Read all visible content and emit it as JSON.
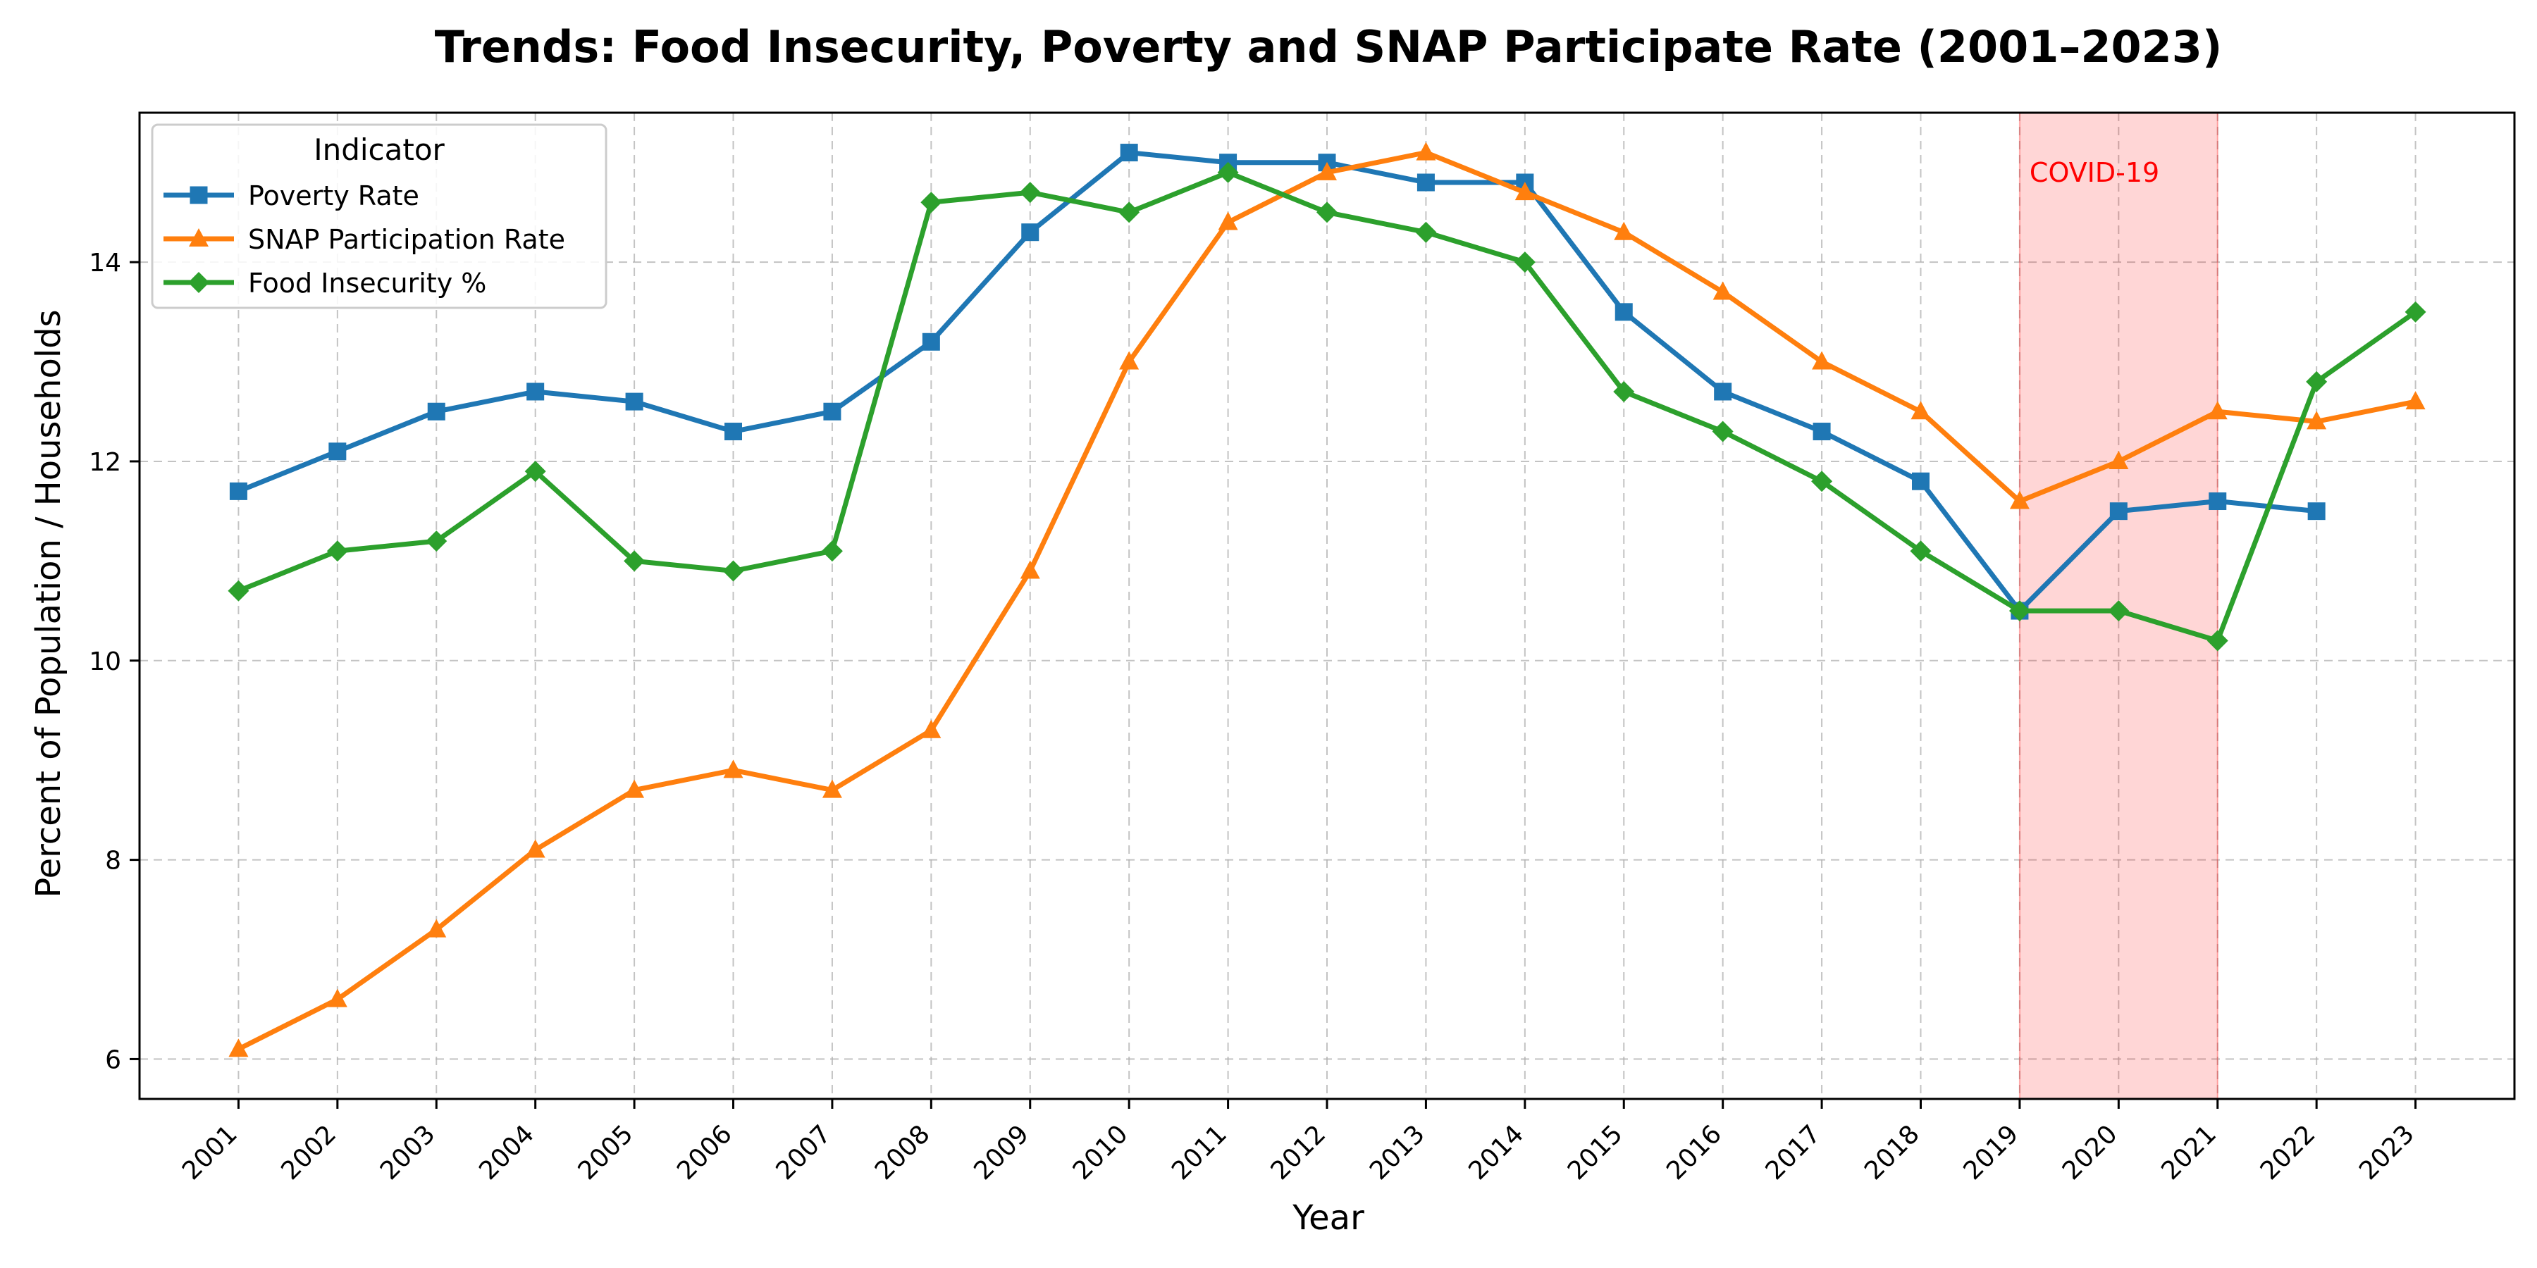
{
  "chart_data": {
    "type": "line",
    "title": "Trends: Food Insecurity, Poverty and SNAP Participate Rate (2001–2023)",
    "xlabel": "Year",
    "ylabel": "Percent of Population / Households",
    "x": [
      2001,
      2002,
      2003,
      2004,
      2005,
      2006,
      2007,
      2008,
      2009,
      2010,
      2011,
      2012,
      2013,
      2014,
      2015,
      2016,
      2017,
      2018,
      2019,
      2020,
      2021,
      2022,
      2023
    ],
    "x_tick_labels": [
      "2001",
      "2002",
      "2003",
      "2004",
      "2005",
      "2006",
      "2007",
      "2008",
      "2009",
      "2010",
      "2011",
      "2012",
      "2013",
      "2014",
      "2015",
      "2016",
      "2017",
      "2018",
      "2019",
      "2020",
      "2021",
      "2022",
      "2023"
    ],
    "xlim": [
      2000,
      2024
    ],
    "ylim": [
      5.6,
      15.5
    ],
    "y_ticks": [
      6,
      8,
      10,
      12,
      14
    ],
    "y_tick_labels": [
      "6",
      "8",
      "10",
      "12",
      "14"
    ],
    "grid": true,
    "legend": {
      "title": "Indicator",
      "placement": "top-left"
    },
    "series": [
      {
        "name": "Poverty Rate",
        "color": "#1f77b4",
        "marker": "square",
        "values": [
          11.7,
          12.1,
          12.5,
          12.7,
          12.6,
          12.3,
          12.5,
          13.2,
          14.3,
          15.1,
          15.0,
          15.0,
          14.8,
          14.8,
          13.5,
          12.7,
          12.3,
          11.8,
          10.5,
          11.5,
          11.6,
          11.5,
          null
        ]
      },
      {
        "name": "SNAP Participation Rate",
        "color": "#ff7f0e",
        "marker": "triangle",
        "values": [
          6.1,
          6.6,
          7.3,
          8.1,
          8.7,
          8.9,
          8.7,
          9.3,
          10.9,
          13.0,
          14.4,
          14.9,
          15.1,
          14.7,
          14.3,
          13.7,
          13.0,
          12.5,
          11.6,
          12.0,
          12.5,
          12.4,
          12.6
        ]
      },
      {
        "name": "Food Insecurity %",
        "color": "#2ca02c",
        "marker": "diamond",
        "values": [
          10.7,
          11.1,
          11.2,
          11.9,
          11.0,
          10.9,
          11.1,
          14.6,
          14.7,
          14.5,
          14.9,
          14.5,
          14.3,
          14.0,
          12.7,
          12.3,
          11.8,
          11.1,
          10.5,
          10.5,
          10.2,
          12.8,
          13.5
        ]
      }
    ],
    "annotations": [
      {
        "label": "COVID-19",
        "type": "shaded-span",
        "x_start": 2019,
        "x_end": 2021,
        "color": "#ff0000"
      }
    ]
  }
}
